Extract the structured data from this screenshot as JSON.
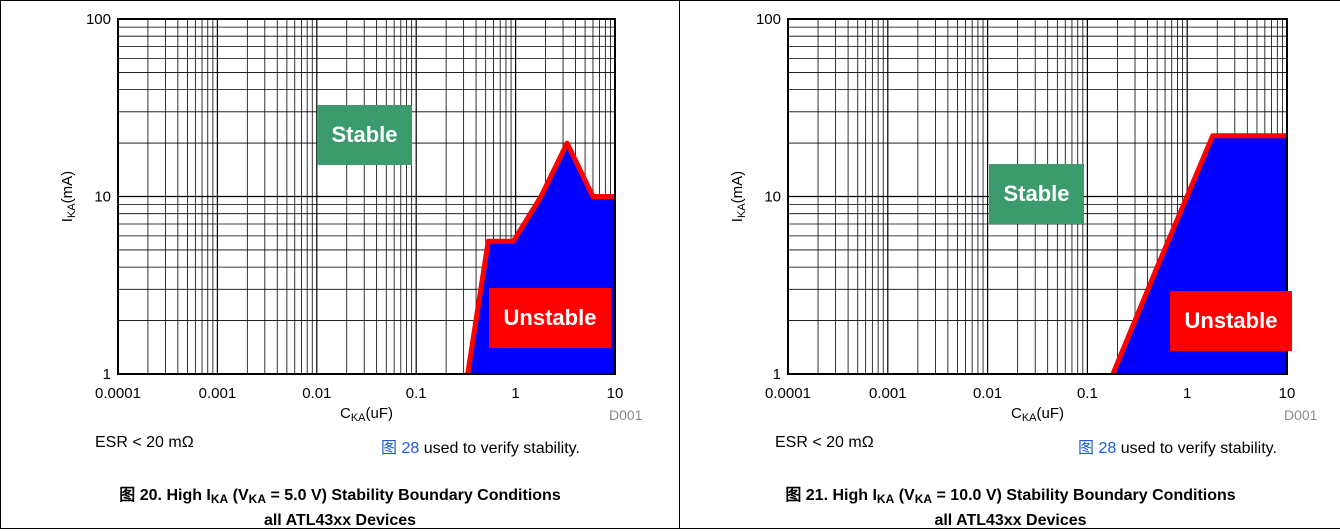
{
  "figures": [
    {
      "figure_label": "图",
      "figure_number": "20.",
      "caption_title_parts": [
        "High I",
        "KA",
        " (V",
        "KA",
        " = 5.0 V) Stability Boundary Conditions"
      ],
      "caption_line2": "all ATL43xx Devices",
      "note_left": "ESR < 20 mΩ",
      "note_link": "图 28",
      "note_rest": " used to verify stability.",
      "code": "D001"
    },
    {
      "figure_label": "图",
      "figure_number": "21.",
      "caption_title_parts": [
        "High I",
        "KA",
        " (V",
        "KA",
        " = 10.0 V) Stability Boundary Conditions"
      ],
      "caption_line2": "all ATL43xx Devices",
      "note_left": "ESR < 20 mΩ",
      "note_link": "图 28",
      "note_rest": " used to verify stability.",
      "code": "D001"
    }
  ],
  "chart_data": [
    {
      "type": "area",
      "xscale": "log",
      "yscale": "log",
      "xlim": [
        0.0001,
        10
      ],
      "ylim": [
        1,
        100
      ],
      "x_ticks": [
        "0.0001",
        "0.001",
        "0.01",
        "0.1",
        "1",
        "10"
      ],
      "y_ticks": [
        "1",
        "10",
        "100"
      ],
      "xlabel_main": "C",
      "xlabel_sub": "KA",
      "xlabel_unit": "(uF)",
      "ylabel_main": "I",
      "ylabel_sub": "KA",
      "ylabel_unit": "(mA)",
      "grid": true,
      "region_labels": [
        "Stable",
        "Unstable"
      ],
      "boundary": {
        "x": [
          0.33,
          0.53,
          0.95,
          1.8,
          3.3,
          6.0,
          10
        ],
        "y": [
          1,
          5.6,
          5.6,
          10,
          20,
          10,
          10
        ]
      },
      "colors": {
        "unstable_fill": "#0000ff",
        "boundary": "#ff0000",
        "stable_box": "#3c9b6c",
        "unstable_box": "#ff0000"
      }
    },
    {
      "type": "area",
      "xscale": "log",
      "yscale": "log",
      "xlim": [
        0.0001,
        10
      ],
      "ylim": [
        1,
        100
      ],
      "x_ticks": [
        "0.0001",
        "0.001",
        "0.01",
        "0.1",
        "1",
        "10"
      ],
      "y_ticks": [
        "1",
        "10",
        "100"
      ],
      "xlabel_main": "C",
      "xlabel_sub": "KA",
      "xlabel_unit": "(uF)",
      "ylabel_main": "I",
      "ylabel_sub": "KA",
      "ylabel_unit": "(mA)",
      "grid": true,
      "region_labels": [
        "Stable",
        "Unstable"
      ],
      "boundary": {
        "x": [
          0.18,
          0.5,
          1.8,
          10
        ],
        "y": [
          1,
          4,
          22,
          22
        ]
      },
      "colors": {
        "unstable_fill": "#0000ff",
        "boundary": "#ff0000",
        "stable_box": "#3c9b6c",
        "unstable_box": "#ff0000"
      }
    }
  ]
}
